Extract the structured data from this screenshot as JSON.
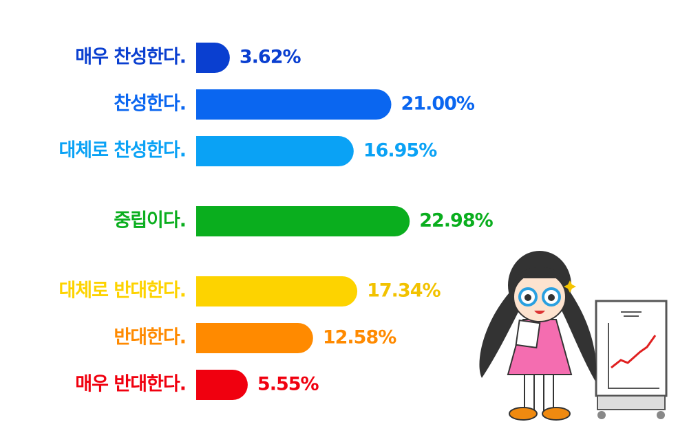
{
  "chart_data": {
    "type": "bar",
    "orientation": "horizontal",
    "categories": [
      "매우 찬성한다.",
      "찬성한다.",
      "대체로 찬성한다.",
      "중립이다.",
      "대체로 반대한다.",
      "반대한다.",
      "매우 반대한다."
    ],
    "values": [
      3.62,
      21.0,
      16.95,
      22.98,
      17.34,
      12.58,
      5.55
    ],
    "value_labels": [
      "3.62%",
      "21.00%",
      "16.95%",
      "22.98%",
      "17.34%",
      "12.58%",
      "5.55%"
    ],
    "colors": [
      "#0a3fd0",
      "#0a66f0",
      "#0aa2f5",
      "#0aae1e",
      "#fdd300",
      "#ff8a00",
      "#f0000f"
    ]
  }
}
